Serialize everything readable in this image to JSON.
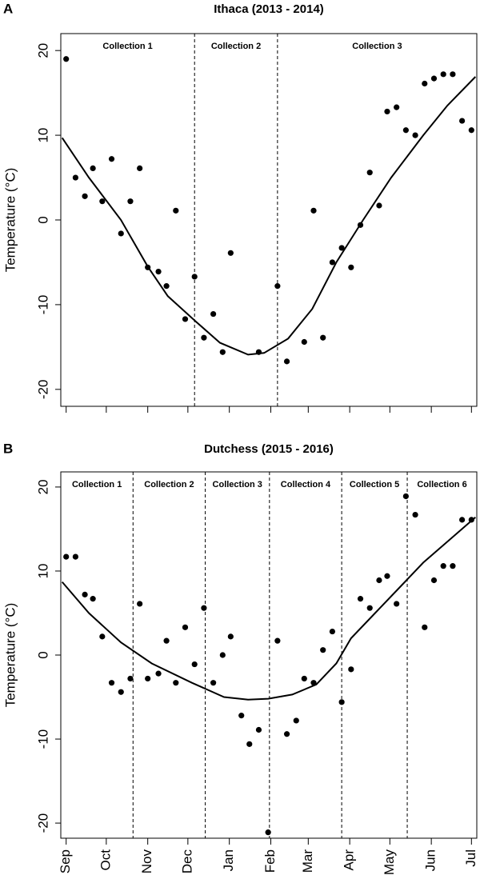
{
  "chart_data": [
    {
      "type": "scatter",
      "label": "A",
      "title": "Ithaca (2013 - 2014)",
      "y_label": "Temperature (°C)",
      "xlim": [
        -4,
        307
      ],
      "ylim": [
        -22,
        22
      ],
      "xticks": [
        0,
        30,
        61,
        91,
        122,
        153,
        181,
        212,
        242,
        273,
        303
      ],
      "yticks": [
        -20,
        -10,
        0,
        10,
        20
      ],
      "dividers": [
        96,
        158
      ],
      "collections": [
        "Collection 1",
        "Collection 2",
        "Collection 3"
      ],
      "color": "#000000",
      "points": {
        "x": [
          0,
          7,
          14,
          20,
          27,
          34,
          41,
          48,
          55,
          61,
          69,
          75,
          82,
          89,
          96,
          103,
          110,
          117,
          123,
          144,
          158,
          165,
          178,
          185,
          192,
          199,
          206,
          213,
          220,
          227,
          234,
          240,
          247,
          254,
          261,
          268,
          275,
          282,
          289,
          296,
          303
        ],
        "values": [
          19,
          5,
          2.8,
          6.1,
          2.2,
          7.2,
          -1.6,
          2.2,
          6.1,
          -5.6,
          -6.1,
          -7.8,
          1.1,
          -11.7,
          -6.7,
          -13.9,
          -11.1,
          -15.6,
          -3.9,
          -15.6,
          -7.8,
          -16.7,
          -14.4,
          1.1,
          -13.9,
          -5,
          -3.3,
          -5.6,
          -0.6,
          5.6,
          1.7,
          12.8,
          13.3,
          10.6,
          10,
          16.1,
          16.7,
          17.2,
          17.2,
          11.7,
          10.6
        ]
      },
      "curve": {
        "x": [
          -3,
          17,
          41,
          61,
          76,
          97,
          115,
          136,
          148,
          166,
          184,
          202,
          222,
          243,
          267,
          285,
          306
        ],
        "values": [
          9.7,
          5,
          0,
          -5.5,
          -9,
          -12,
          -14.5,
          -15.9,
          -15.7,
          -14,
          -10.5,
          -5,
          0,
          5,
          10,
          13.5,
          16.9
        ]
      }
    },
    {
      "type": "scatter",
      "label": "B",
      "title": "Dutchess (2015 - 2016)",
      "y_label": "Temperature (°C)",
      "xlim": [
        -4,
        307
      ],
      "ylim": [
        -21.8,
        21.8
      ],
      "xticks": [
        {
          "value": 0,
          "label": "Sep"
        },
        {
          "value": 30,
          "label": "Oct"
        },
        {
          "value": 61,
          "label": "Nov"
        },
        {
          "value": 91,
          "label": "Dec"
        },
        {
          "value": 122,
          "label": "Jan"
        },
        {
          "value": 153,
          "label": "Feb"
        },
        {
          "value": 181,
          "label": "Mar"
        },
        {
          "value": 212,
          "label": "Apr"
        },
        {
          "value": 242,
          "label": "May"
        },
        {
          "value": 273,
          "label": "Jun"
        },
        {
          "value": 303,
          "label": "Jul"
        }
      ],
      "yticks": [
        -20,
        -10,
        0,
        10,
        20
      ],
      "dividers": [
        50,
        104,
        152,
        206,
        255
      ],
      "collections": [
        "Collection 1",
        "Collection 2",
        "Collection 3",
        "Collection 4",
        "Collection 5",
        "Collection 6"
      ],
      "color": "#000000",
      "points": {
        "x": [
          0,
          7,
          14,
          20,
          27,
          34,
          41,
          48,
          55,
          61,
          69,
          75,
          82,
          89,
          96,
          103,
          110,
          117,
          123,
          131,
          137,
          144,
          151,
          158,
          165,
          172,
          178,
          185,
          192,
          199,
          206,
          213,
          220,
          227,
          234,
          240,
          247,
          254,
          261,
          268,
          275,
          282,
          289,
          296,
          303
        ],
        "values": [
          11.7,
          11.7,
          7.2,
          6.7,
          2.2,
          -3.3,
          -4.4,
          -2.8,
          6.1,
          -2.8,
          -2.2,
          1.7,
          -3.3,
          3.3,
          -1.1,
          5.6,
          -3.3,
          0,
          2.2,
          -7.2,
          -10.6,
          -8.9,
          -21.1,
          1.7,
          -9.4,
          -7.8,
          -2.8,
          -3.3,
          0.6,
          2.8,
          -5.6,
          -1.7,
          6.7,
          5.6,
          8.9,
          9.4,
          6.1,
          18.9,
          16.7,
          3.3,
          8.9,
          10.6,
          10.6,
          16.1,
          16.1
        ]
      },
      "curve": {
        "x": [
          -3,
          17,
          41,
          64,
          94,
          118,
          136,
          151,
          169,
          187,
          202,
          213,
          231,
          249,
          267,
          285,
          306
        ],
        "values": [
          8.7,
          5,
          1.5,
          -1,
          -3.3,
          -5,
          -5.3,
          -5.2,
          -4.7,
          -3.5,
          -1,
          2,
          5,
          8,
          11,
          13.5,
          16.4
        ]
      }
    }
  ]
}
